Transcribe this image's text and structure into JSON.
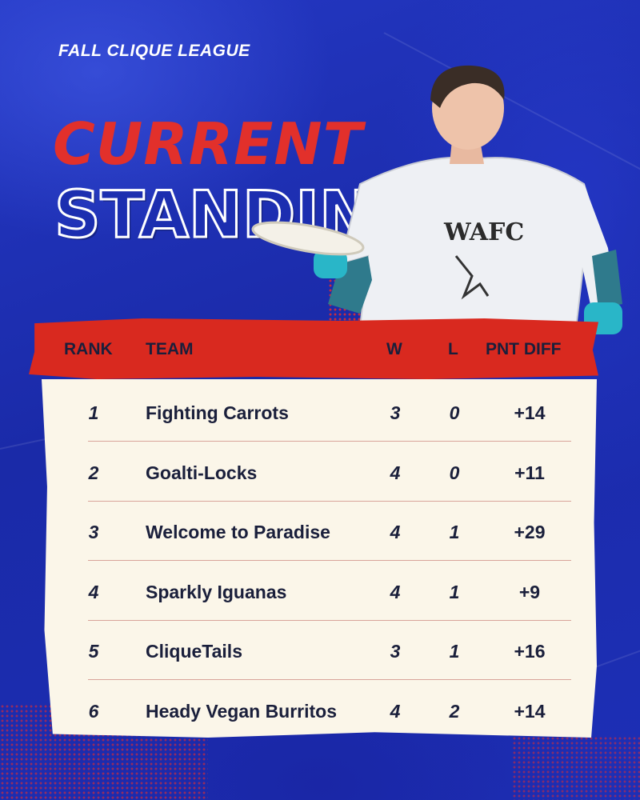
{
  "league": "FALL CLIQUE LEAGUE",
  "title": {
    "line1": "CURRENT",
    "line2": "STANDINGS"
  },
  "shirt_text": "WAFC",
  "columns": {
    "rank": "RANK",
    "team": "TEAM",
    "w": "W",
    "l": "L",
    "diff": "PNT DIFF"
  },
  "rows": [
    {
      "rank": "1",
      "team": "Fighting Carrots",
      "w": "3",
      "l": "0",
      "diff": "+14"
    },
    {
      "rank": "2",
      "team": "Goalti-Locks",
      "w": "4",
      "l": "0",
      "diff": "+11"
    },
    {
      "rank": "3",
      "team": "Welcome to Paradise",
      "w": "4",
      "l": "1",
      "diff": "+29"
    },
    {
      "rank": "4",
      "team": "Sparkly Iguanas",
      "w": "4",
      "l": "1",
      "diff": "+9"
    },
    {
      "rank": "5",
      "team": "CliqueTails",
      "w": "3",
      "l": "1",
      "diff": "+16"
    },
    {
      "rank": "6",
      "team": "Heady Vegan Burritos",
      "w": "4",
      "l": "2",
      "diff": "+14"
    }
  ],
  "colors": {
    "background": "#1c2eb0",
    "accent_red": "#d9291f",
    "table_bg": "#fbf6e9",
    "text_dark": "#1a1f3b"
  }
}
